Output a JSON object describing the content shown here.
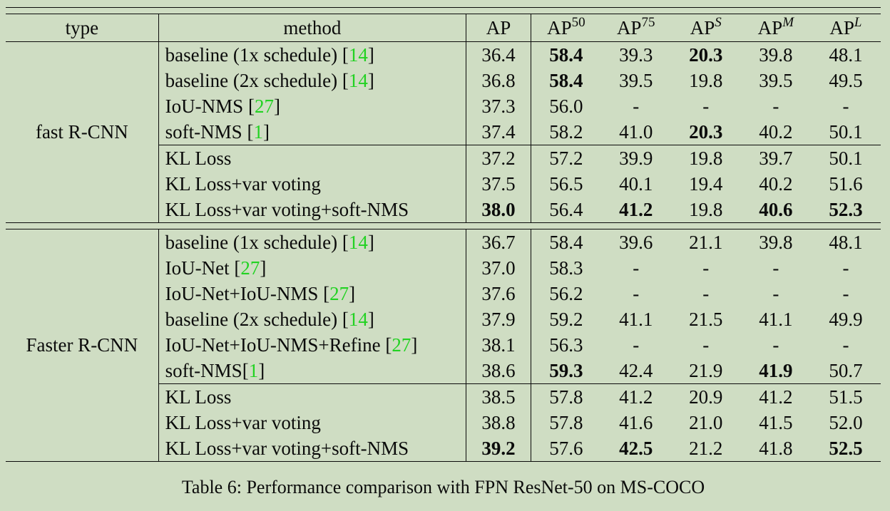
{
  "colors": {
    "background": "#cfddc3",
    "text": "#0b0b0b",
    "citation_green": "#22d222"
  },
  "table": {
    "columns": [
      "type",
      "method",
      "AP",
      "AP50",
      "AP75",
      "APS",
      "APM",
      "APL"
    ],
    "header": {
      "type": "type",
      "method": "method",
      "cols": [
        {
          "base": "AP",
          "sup": ""
        },
        {
          "base": "AP",
          "sup": "50"
        },
        {
          "base": "AP",
          "sup": "75"
        },
        {
          "base": "AP",
          "sup": "S"
        },
        {
          "base": "AP",
          "sup": "M"
        },
        {
          "base": "AP",
          "sup": "L"
        }
      ]
    },
    "bracket_open": "[",
    "bracket_close": "]",
    "sections": [
      {
        "type_label": "fast R-CNN",
        "groups": [
          {
            "rows": [
              {
                "method": {
                  "pre": "baseline (1x schedule) ",
                  "cite": "14"
                },
                "values": [
                  "36.4",
                  "58.4",
                  "39.3",
                  "20.3",
                  "39.8",
                  "48.1"
                ],
                "bold": [
                  false,
                  true,
                  false,
                  true,
                  false,
                  false
                ]
              },
              {
                "method": {
                  "pre": "baseline (2x schedule) ",
                  "cite": "14"
                },
                "values": [
                  "36.8",
                  "58.4",
                  "39.5",
                  "19.8",
                  "39.5",
                  "49.5"
                ],
                "bold": [
                  false,
                  true,
                  false,
                  false,
                  false,
                  false
                ]
              },
              {
                "method": {
                  "pre": "IoU-NMS ",
                  "cite": "27"
                },
                "values": [
                  "37.3",
                  "56.0",
                  "-",
                  "-",
                  "-",
                  "-"
                ],
                "bold": [
                  false,
                  false,
                  false,
                  false,
                  false,
                  false
                ]
              },
              {
                "method": {
                  "pre": "soft-NMS ",
                  "cite": "1"
                },
                "values": [
                  "37.4",
                  "58.2",
                  "41.0",
                  "20.3",
                  "40.2",
                  "50.1"
                ],
                "bold": [
                  false,
                  false,
                  false,
                  true,
                  false,
                  false
                ]
              }
            ]
          },
          {
            "rows": [
              {
                "method": {
                  "pre": "KL Loss",
                  "cite": null
                },
                "values": [
                  "37.2",
                  "57.2",
                  "39.9",
                  "19.8",
                  "39.7",
                  "50.1"
                ],
                "bold": [
                  false,
                  false,
                  false,
                  false,
                  false,
                  false
                ]
              },
              {
                "method": {
                  "pre": "KL Loss+var voting",
                  "cite": null
                },
                "values": [
                  "37.5",
                  "56.5",
                  "40.1",
                  "19.4",
                  "40.2",
                  "51.6"
                ],
                "bold": [
                  false,
                  false,
                  false,
                  false,
                  false,
                  false
                ]
              },
              {
                "method": {
                  "pre": "KL Loss+var voting+soft-NMS",
                  "cite": null
                },
                "values": [
                  "38.0",
                  "56.4",
                  "41.2",
                  "19.8",
                  "40.6",
                  "52.3"
                ],
                "bold": [
                  true,
                  false,
                  true,
                  false,
                  true,
                  true
                ]
              }
            ]
          }
        ]
      },
      {
        "type_label": "Faster R-CNN",
        "groups": [
          {
            "rows": [
              {
                "method": {
                  "pre": "baseline (1x schedule) ",
                  "cite": "14"
                },
                "values": [
                  "36.7",
                  "58.4",
                  "39.6",
                  "21.1",
                  "39.8",
                  "48.1"
                ],
                "bold": [
                  false,
                  false,
                  false,
                  false,
                  false,
                  false
                ]
              },
              {
                "method": {
                  "pre": "IoU-Net ",
                  "cite": "27"
                },
                "values": [
                  "37.0",
                  "58.3",
                  "-",
                  "-",
                  "-",
                  "-"
                ],
                "bold": [
                  false,
                  false,
                  false,
                  false,
                  false,
                  false
                ]
              },
              {
                "method": {
                  "pre": "IoU-Net+IoU-NMS ",
                  "cite": "27"
                },
                "values": [
                  "37.6",
                  "56.2",
                  "-",
                  "-",
                  "-",
                  "-"
                ],
                "bold": [
                  false,
                  false,
                  false,
                  false,
                  false,
                  false
                ]
              },
              {
                "method": {
                  "pre": "baseline (2x schedule) ",
                  "cite": "14"
                },
                "values": [
                  "37.9",
                  "59.2",
                  "41.1",
                  "21.5",
                  "41.1",
                  "49.9"
                ],
                "bold": [
                  false,
                  false,
                  false,
                  false,
                  false,
                  false
                ]
              },
              {
                "method": {
                  "pre": "IoU-Net+IoU-NMS+Refine ",
                  "cite": "27"
                },
                "values": [
                  "38.1",
                  "56.3",
                  "-",
                  "-",
                  "-",
                  "-"
                ],
                "bold": [
                  false,
                  false,
                  false,
                  false,
                  false,
                  false
                ]
              },
              {
                "method": {
                  "pre": "soft-NMS",
                  "cite": "1"
                },
                "values": [
                  "38.6",
                  "59.3",
                  "42.4",
                  "21.9",
                  "41.9",
                  "50.7"
                ],
                "bold": [
                  false,
                  true,
                  false,
                  false,
                  true,
                  false
                ]
              }
            ]
          },
          {
            "rows": [
              {
                "method": {
                  "pre": "KL Loss",
                  "cite": null
                },
                "values": [
                  "38.5",
                  "57.8",
                  "41.2",
                  "20.9",
                  "41.2",
                  "51.5"
                ],
                "bold": [
                  false,
                  false,
                  false,
                  false,
                  false,
                  false
                ]
              },
              {
                "method": {
                  "pre": "KL Loss+var voting",
                  "cite": null
                },
                "values": [
                  "38.8",
                  "57.8",
                  "41.6",
                  "21.0",
                  "41.5",
                  "52.0"
                ],
                "bold": [
                  false,
                  false,
                  false,
                  false,
                  false,
                  false
                ]
              },
              {
                "method": {
                  "pre": "KL Loss+var voting+soft-NMS",
                  "cite": null
                },
                "values": [
                  "39.2",
                  "57.6",
                  "42.5",
                  "21.2",
                  "41.8",
                  "52.5"
                ],
                "bold": [
                  true,
                  false,
                  true,
                  false,
                  false,
                  true
                ]
              }
            ]
          }
        ]
      }
    ]
  },
  "caption": "Table 6: Performance comparison with FPN ResNet-50 on MS-COCO"
}
